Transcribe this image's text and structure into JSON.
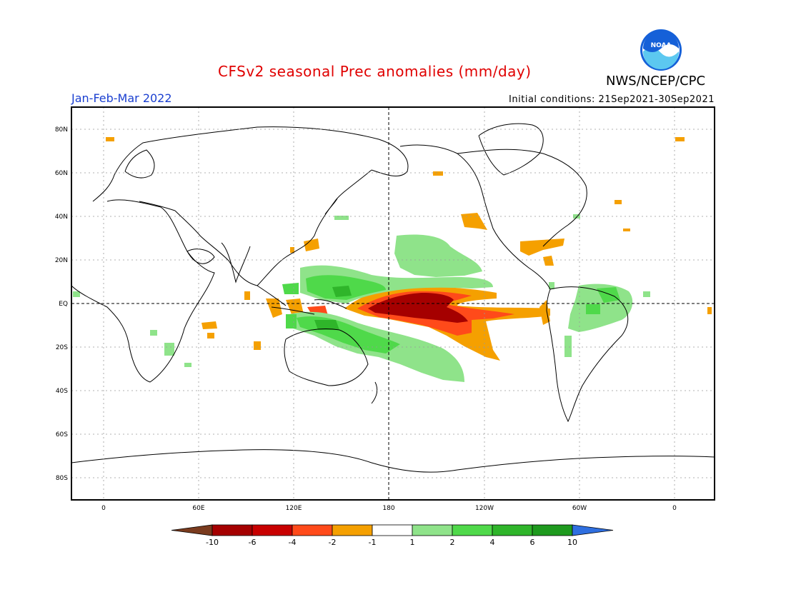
{
  "header": {
    "title": "CFSv2 seasonal Prec anomalies (mm/day)",
    "agency": "NWS/NCEP/CPC",
    "season": "Jan-Feb-Mar 2022",
    "initial_conditions": "Initial conditions: 21Sep2021-30Sep2021",
    "logo_text": "NOAA"
  },
  "map": {
    "lat_labels": [
      "80N",
      "60N",
      "40N",
      "20N",
      "EQ",
      "20S",
      "40S",
      "60S",
      "80S"
    ],
    "lon_labels": [
      "0",
      "60E",
      "120E",
      "180",
      "120W",
      "60W",
      "0"
    ]
  },
  "colorbar": {
    "labels": [
      "-10",
      "-6",
      "-4",
      "-2",
      "-1",
      "1",
      "2",
      "4",
      "6",
      "10"
    ],
    "colors": [
      "#7a3b1e",
      "#a50000",
      "#c80000",
      "#ff4a1a",
      "#f5a000",
      "#ffffff",
      "#8fe38a",
      "#4fd94a",
      "#2fb52a",
      "#1e9a1e",
      "#2f6fe0"
    ]
  },
  "colors": {
    "title": "#e00000",
    "season": "#1a3fd0",
    "logo_blue": "#1560d8",
    "logo_cyan": "#5cc8f0"
  }
}
